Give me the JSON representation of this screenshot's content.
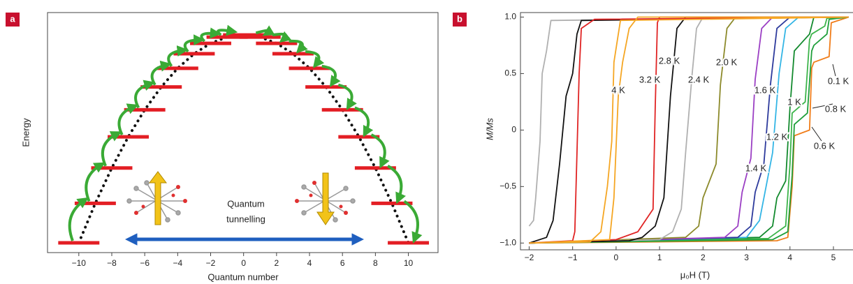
{
  "chart_data": [
    {
      "type": "levels",
      "panel_label": "a",
      "xlabel": "Quantum number",
      "ylabel": "Energy",
      "annotation": [
        "Quantum",
        "tunnelling"
      ],
      "x": [
        -10,
        -9,
        -8,
        -7,
        -6,
        -5,
        -4,
        -3,
        -2,
        -1,
        0,
        1,
        2,
        3,
        4,
        5,
        6,
        7,
        8,
        9,
        10
      ],
      "values": [
        0,
        19,
        36,
        51,
        64,
        75,
        84,
        91,
        96,
        99,
        100,
        99,
        96,
        91,
        84,
        75,
        64,
        51,
        36,
        19,
        0
      ],
      "color": "#e31e24",
      "xlim": [
        -11.9,
        11.8
      ],
      "ylim": [
        -4.7,
        110.8
      ],
      "xticks": [
        {
          "value": -10,
          "label": "−10"
        },
        {
          "value": -8,
          "label": "−8"
        },
        {
          "value": -6,
          "label": "−6"
        },
        {
          "value": -4,
          "label": "−4"
        },
        {
          "value": -2,
          "label": "−2"
        },
        0,
        2,
        4,
        6,
        8,
        10
      ]
    },
    {
      "type": "line",
      "panel_label": "b",
      "xlabel": "μ₀H (T)",
      "ylabel": "M/Ms",
      "xlim": [
        -2.2,
        5.45
      ],
      "ylim": [
        -1.06,
        1.04
      ],
      "xticks": [
        {
          "value": -2,
          "label": "−2"
        },
        {
          "value": -1,
          "label": "−1"
        },
        0,
        1,
        2,
        3,
        4,
        5
      ],
      "yticks": [
        {
          "value": -1,
          "label": "−1.0"
        },
        {
          "value": -0.5,
          "label": "−0.5"
        },
        0,
        0.5,
        {
          "value": 1,
          "label": "1.0"
        }
      ],
      "series": [
        {
          "name": "0.1 K",
          "color": "#f07d1a",
          "x": [
            -2,
            3.7,
            3.95,
            4.05,
            4.1,
            4.45,
            4.5,
            4.55,
            4.9,
            4.95,
            5.35
          ],
          "values": [
            -1,
            -0.98,
            -0.95,
            -0.5,
            -0.05,
            0,
            0.55,
            0.6,
            0.65,
            0.95,
            1
          ]
        },
        {
          "name": "0.6 K",
          "color": "#1e9e3a",
          "x": [
            -2,
            3.6,
            3.95,
            4.05,
            4.1,
            4.4,
            4.5,
            4.55,
            4.85,
            4.9,
            5.35
          ],
          "values": [
            -1,
            -0.97,
            -0.9,
            -0.4,
            0.05,
            0.15,
            0.7,
            0.75,
            0.85,
            0.98,
            1
          ]
        },
        {
          "name": "0.8 K",
          "color": "#3cb44a",
          "x": [
            -2,
            3.5,
            3.9,
            4.0,
            4.05,
            4.35,
            4.45,
            4.5,
            4.8,
            4.85,
            5.35
          ],
          "values": [
            -1,
            -0.96,
            -0.85,
            -0.3,
            0.15,
            0.25,
            0.8,
            0.85,
            0.92,
            0.99,
            1
          ]
        },
        {
          "name": "1 K",
          "color": "#138a2e",
          "x": [
            -2,
            3.3,
            3.6,
            3.7,
            3.9,
            4.0,
            4.1,
            4.45,
            4.55,
            5.35
          ],
          "values": [
            -1,
            -0.95,
            -0.85,
            -0.6,
            -0.45,
            0.2,
            0.7,
            0.85,
            1,
            1
          ]
        },
        {
          "name": "1.2 K",
          "color": "#33b5e5",
          "x": [
            -2,
            3.0,
            3.3,
            3.45,
            3.6,
            3.75,
            3.9,
            4.2,
            5.35
          ],
          "values": [
            -1,
            -0.95,
            -0.8,
            -0.5,
            -0.2,
            0.5,
            0.9,
            1,
            1
          ]
        },
        {
          "name": "1.4 K",
          "color": "#2d3a9c",
          "x": [
            -2,
            2.8,
            3.1,
            3.2,
            3.4,
            3.55,
            3.7,
            4.0,
            5.35
          ],
          "values": [
            -1,
            -0.95,
            -0.85,
            -0.55,
            -0.3,
            0.4,
            0.9,
            1,
            1
          ]
        },
        {
          "name": "1.6 K",
          "color": "#9b3fc4",
          "x": [
            -2,
            2.5,
            2.8,
            2.9,
            3.1,
            3.2,
            3.35,
            3.6,
            5.35
          ],
          "values": [
            -1,
            -0.95,
            -0.85,
            -0.55,
            -0.25,
            0.45,
            0.9,
            1,
            1
          ]
        },
        {
          "name": "2.0 K",
          "color": "#8c8a2b",
          "x": [
            -2,
            1.6,
            1.9,
            2.0,
            2.3,
            2.4,
            2.55,
            2.75,
            5.35
          ],
          "values": [
            -1,
            -0.95,
            -0.85,
            -0.6,
            -0.3,
            0.4,
            0.9,
            1,
            1
          ]
        },
        {
          "name": "2.4 K",
          "color": "#b0b0b0",
          "x": [
            -2,
            1.0,
            1.3,
            1.5,
            1.6,
            1.75,
            1.85,
            2.0,
            5.35,
            null,
            5.35,
            -1.5,
            -1.6,
            -1.7,
            -1.75,
            -1.85,
            -1.9,
            -2
          ],
          "values": [
            -1,
            -0.97,
            -0.9,
            -0.7,
            -0.2,
            0.5,
            0.9,
            1,
            1,
            null,
            1,
            0.97,
            0.7,
            0.5,
            -0.1,
            -0.6,
            -0.8,
            -0.85
          ]
        },
        {
          "name": "2.8 K",
          "color": "#111111",
          "x": [
            -2,
            0.3,
            0.6,
            0.9,
            1.1,
            1.25,
            1.4,
            1.6,
            5.35,
            null,
            5.35,
            -0.8,
            -0.9,
            -1.0,
            -1.15,
            -1.3,
            -1.45,
            -1.6,
            -2
          ],
          "values": [
            -1,
            -0.98,
            -0.95,
            -0.85,
            -0.6,
            0.3,
            0.9,
            1,
            1,
            null,
            1,
            0.97,
            0.85,
            0.5,
            0.3,
            -0.3,
            -0.8,
            -0.95,
            -1
          ]
        },
        {
          "name": "3.2 K",
          "color": "#e02424",
          "x": [
            -2,
            0.0,
            0.5,
            0.85,
            0.9,
            0.95,
            1.0,
            5.35,
            null,
            5.35,
            -0.5,
            -0.8,
            -0.85,
            -0.9,
            -0.95,
            -1.0,
            -2
          ],
          "values": [
            -1,
            -0.97,
            -0.9,
            -0.7,
            0.2,
            0.95,
            1,
            1,
            null,
            1,
            0.98,
            0.9,
            0.5,
            -0.2,
            -0.9,
            -0.98,
            -1
          ]
        },
        {
          "name": "4 K",
          "color": "#f5a623",
          "x": [
            -2,
            -0.15,
            -0.05,
            0.05,
            0.15,
            0.3,
            0.5,
            5.35,
            null,
            5.35,
            0.1,
            -0.05,
            -0.1,
            -0.2,
            -0.35,
            -0.6,
            -2
          ],
          "values": [
            -1,
            -0.97,
            -0.6,
            0.3,
            0.6,
            0.9,
            1,
            1,
            null,
            1,
            0.97,
            0.6,
            -0.1,
            -0.5,
            -0.9,
            -0.99,
            -1
          ]
        }
      ]
    }
  ]
}
